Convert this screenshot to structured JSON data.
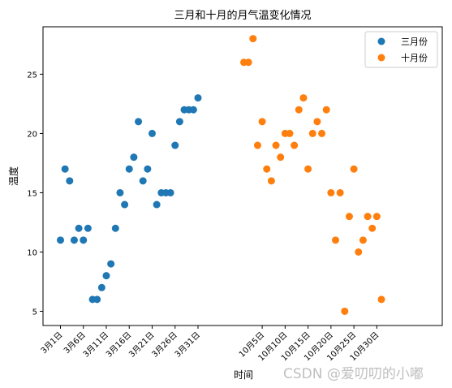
{
  "watermark": "CSDN @爱叨叨的小嘟",
  "chart_data": {
    "type": "scatter",
    "title": "三月和十月的月气温变化情况",
    "xlabel": "时间",
    "ylabel": "温度",
    "ylim": [
      3.8,
      29
    ],
    "yticks": [
      5,
      10,
      15,
      20,
      25
    ],
    "legend_position": "top-right",
    "grid": false,
    "series": [
      {
        "name": "三月份",
        "color": "#1f77b4",
        "x": [
          1,
          2,
          3,
          4,
          5,
          6,
          7,
          8,
          9,
          10,
          11,
          12,
          13,
          14,
          15,
          16,
          17,
          18,
          19,
          20,
          21,
          22,
          23,
          24,
          25,
          26,
          27,
          28,
          29,
          30,
          31
        ],
        "y": [
          11,
          17,
          16,
          11,
          12,
          11,
          12,
          6,
          6,
          7,
          8,
          9,
          12,
          15,
          14,
          17,
          18,
          21,
          16,
          17,
          20,
          14,
          15,
          15,
          15,
          19,
          21,
          22,
          22,
          22,
          23
        ]
      },
      {
        "name": "十月份",
        "color": "#ff7f0e",
        "x": [
          1,
          2,
          3,
          4,
          5,
          6,
          7,
          8,
          9,
          10,
          11,
          12,
          13,
          14,
          15,
          16,
          17,
          18,
          19,
          20,
          21,
          22,
          23,
          24,
          25,
          26,
          27,
          28,
          29,
          30,
          31
        ],
        "y": [
          26,
          26,
          28,
          19,
          21,
          17,
          16,
          19,
          18,
          20,
          20,
          19,
          22,
          23,
          17,
          20,
          21,
          20,
          22,
          15,
          11,
          15,
          5,
          13,
          17,
          10,
          11,
          13,
          12,
          13,
          6
        ]
      }
    ],
    "xtick_labels_march": [
      "3月1日",
      "3月6日",
      "3月11日",
      "3月16日",
      "3月21日",
      "3月26日",
      "3月31日"
    ],
    "xtick_labels_october": [
      "10月5日",
      "10月10日",
      "10月15日",
      "10月20日",
      "10月25日",
      "10月30日"
    ]
  }
}
